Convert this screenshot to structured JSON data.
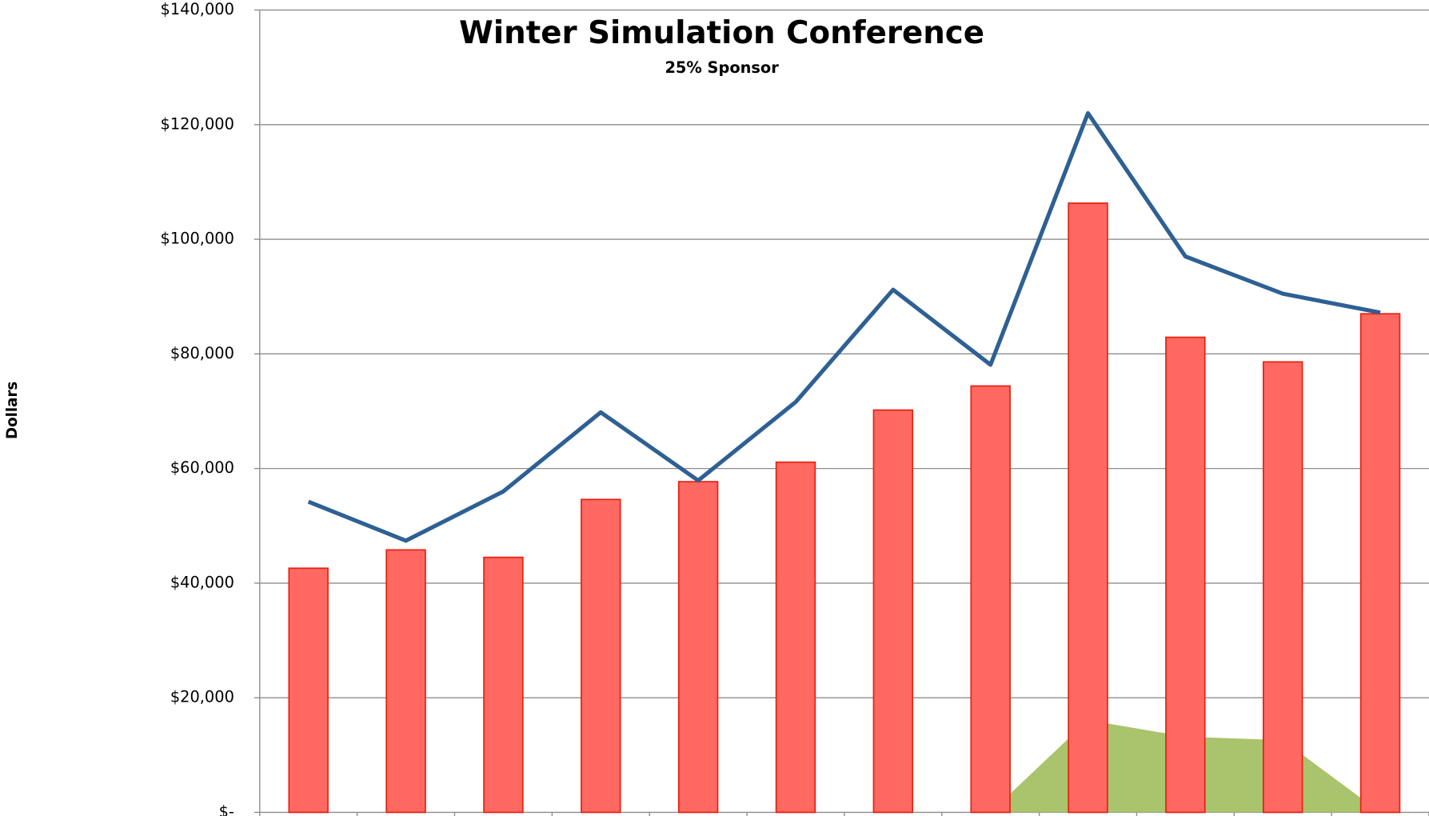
{
  "chart_data": {
    "type": "bar",
    "title": "Winter Simulation Conference",
    "subtitle": "25% Sponsor",
    "y_label": "Dollars",
    "categories": [
      null,
      null,
      null,
      null,
      null,
      null,
      null,
      null,
      null,
      null,
      null,
      null
    ],
    "series": [
      {
        "type": "area",
        "color": "#a9c46c",
        "values": [
          0,
          0,
          0,
          0,
          0,
          0,
          0,
          0,
          16100,
          13200,
          12600,
          0
        ]
      },
      {
        "type": "bar",
        "color": "#ff6961",
        "edge_color": "#e8200f",
        "values": [
          42600,
          45800,
          44500,
          54600,
          57700,
          61100,
          70200,
          74400,
          106300,
          82900,
          78600,
          87000
        ]
      },
      {
        "type": "line",
        "color": "#2e6093",
        "values": [
          54200,
          47400,
          56000,
          69800,
          57900,
          71600,
          91200,
          78100,
          122000,
          97000,
          90500,
          87200
        ]
      }
    ],
    "ylim": [
      0,
      140000
    ],
    "yticks": [
      {
        "value": 0,
        "label": "$-"
      },
      {
        "value": 20000,
        "label": "$20,000"
      },
      {
        "value": 40000,
        "label": "$40,000"
      },
      {
        "value": 60000,
        "label": "$60,000"
      },
      {
        "value": 80000,
        "label": "$80,000"
      },
      {
        "value": 100000,
        "label": "$100,000"
      },
      {
        "value": 120000,
        "label": "$120,000"
      },
      {
        "value": 140000,
        "label": "$140,000"
      }
    ],
    "grid": true
  }
}
